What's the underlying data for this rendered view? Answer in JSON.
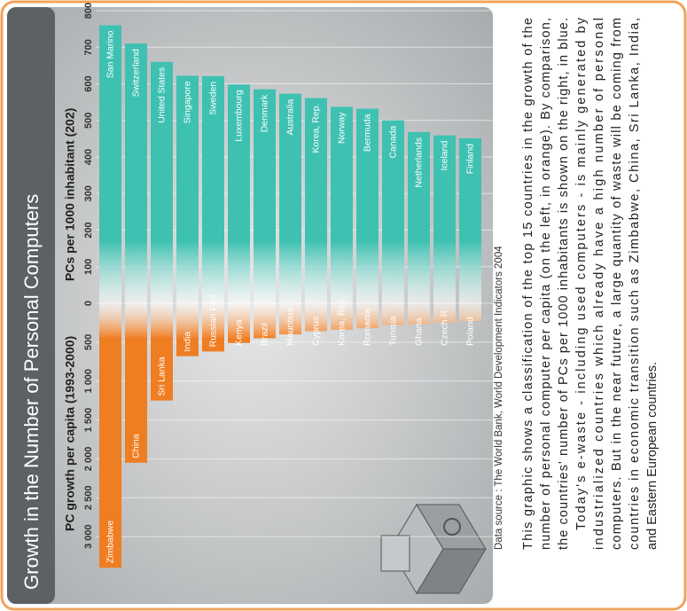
{
  "title": "Growth in the Number of Personal Computers",
  "chart_data": [
    {
      "type": "bar",
      "orientation": "horizontal",
      "title": "PC growth per capita (1993-2000)",
      "categories": [
        "Zimbabwe",
        "China",
        "Sri Lanka",
        "India",
        "Russian Fed",
        "Kenya",
        "Brazil",
        "Mauritius",
        "Cyprus",
        "Korea, Rep.",
        "Romania",
        "Tunisia",
        "Ghana",
        "Czech R.",
        "Poland"
      ],
      "values": [
        3400,
        2050,
        1250,
        680,
        620,
        510,
        450,
        400,
        360,
        340,
        320,
        280,
        270,
        250,
        230
      ],
      "color": "#ef7d22",
      "xlim": [
        0,
        3500
      ],
      "xticks": [
        500,
        {
          "value": 1000,
          "label": "1 000"
        },
        {
          "value": 1500,
          "label": "1 500"
        },
        {
          "value": 2000,
          "label": "2 000"
        },
        {
          "value": 2500,
          "label": "2 500"
        },
        {
          "value": 3000,
          "label": "3 000"
        }
      ],
      "grid": true
    },
    {
      "type": "bar",
      "orientation": "horizontal",
      "title": "PCs per 1000 inhabitant (202)",
      "categories": [
        "San Marino",
        "Switzerland",
        "United States",
        "Singapore",
        "Sweden",
        "Luxembourg",
        "Denmark",
        "Australia",
        "Korea, Rep.",
        "Norway",
        "Bermuda",
        "Canada",
        "Netherlands",
        "Iceland",
        "Finland"
      ],
      "values": [
        760,
        710,
        660,
        622,
        621,
        598,
        585,
        573,
        561,
        537,
        532,
        500,
        468,
        459,
        451
      ],
      "color": "#3fc1b1",
      "xlim": [
        0,
        800
      ],
      "xticks": [
        0,
        100,
        200,
        300,
        400,
        500,
        600,
        700,
        800
      ],
      "grid": true
    }
  ],
  "source": "Data source : The World Bank, World Development Indicators 2004",
  "description": [
    [
      "This graphic shows a classification of the top 15 countries in the growth of the",
      "number of personal computer per capita (on the left, in orange). By comparison,",
      "the countries' number of PCs per 1000 inhabitants is shown on the right, in blue."
    ],
    [
      "Today's e-waste - including used computers - is mainly generated by",
      "industrialized countries which already have a high number of personal",
      "computers. But in the near future, a large quantity of waste will be coming from",
      "countries in economic transition such as Zimbabwe, China, Sri Lanka, India,",
      "and Eastern European countries."
    ]
  ]
}
